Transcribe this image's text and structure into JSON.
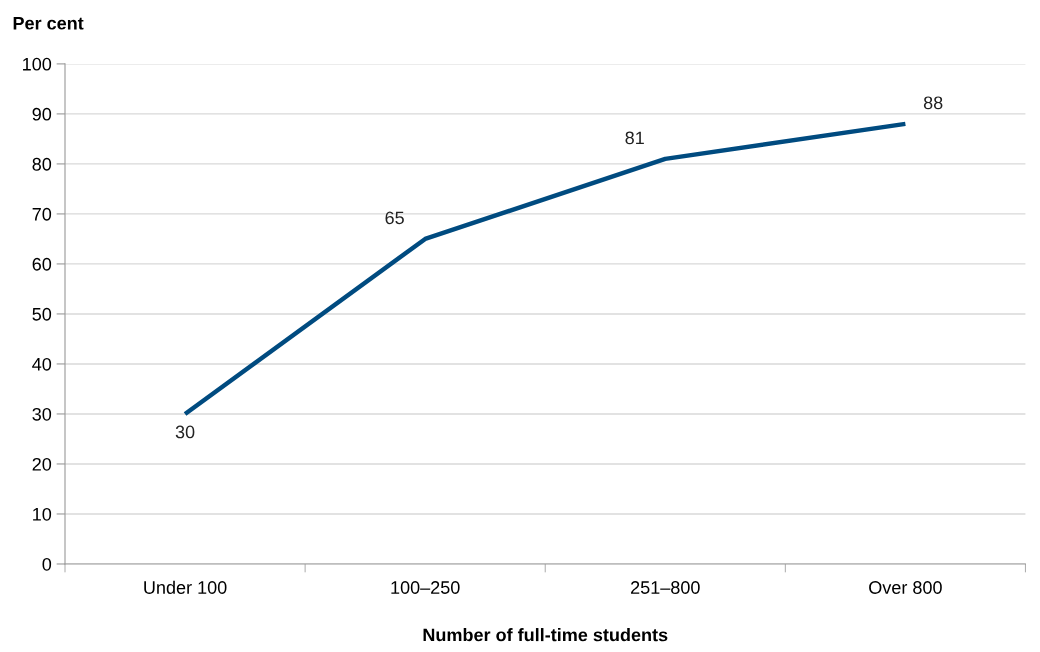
{
  "chart_data": {
    "type": "line",
    "xlabel": "Number of full-time students",
    "ylabel": "Per cent",
    "categories": [
      "Under 100",
      "100–250",
      "251–800",
      "Over 800"
    ],
    "series": [
      {
        "color": "#004b80",
        "values": [
          30,
          65,
          81,
          88
        ]
      }
    ],
    "ylim": [
      0,
      100
    ],
    "yticks": [
      0,
      10,
      20,
      30,
      40,
      50,
      60,
      70,
      80,
      90,
      100
    ],
    "grid": "y",
    "data_labels": true,
    "marker": "none",
    "line_style": "solid"
  }
}
